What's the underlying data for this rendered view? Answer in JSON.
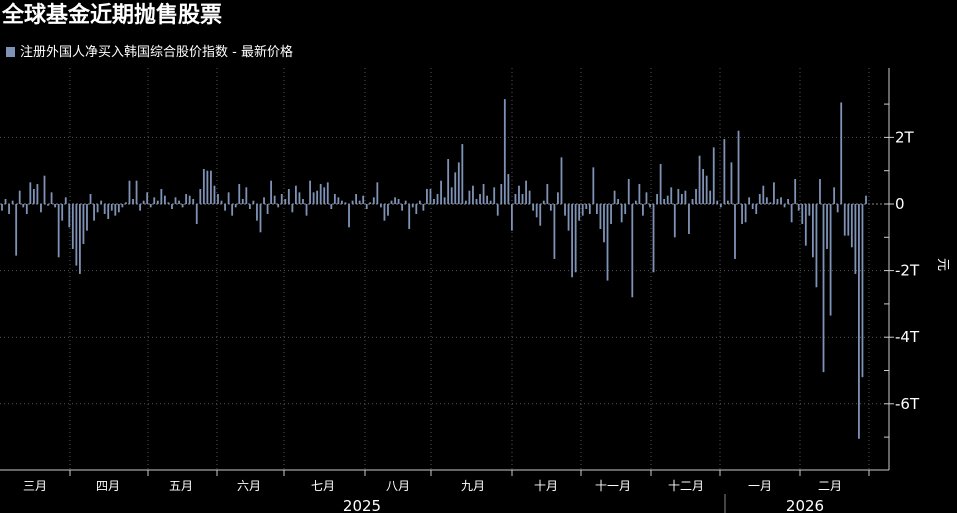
{
  "title": "全球基金近期抛售股票",
  "legend": {
    "label": "注册外国人净买入韩国综合股价指数 - 最新价格",
    "color": "#7f93b6"
  },
  "chart_data": {
    "type": "bar",
    "title": "全球基金近期抛售股票",
    "ylabel": "元",
    "ylim": [
      -8.1,
      4.1
    ],
    "grid": true,
    "bar_color": "#7f93b6",
    "y_ticks": [
      {
        "value": 2,
        "label": "2T"
      },
      {
        "value": 0,
        "label": "0"
      },
      {
        "value": -2,
        "label": "-2T"
      },
      {
        "value": -4,
        "label": "-4T"
      },
      {
        "value": -6,
        "label": "-6T"
      }
    ],
    "month_labels": [
      "三月",
      "四月",
      "五月",
      "六月",
      "七月",
      "八月",
      "九月",
      "十月",
      "十一月",
      "十二月",
      "一月",
      "二月"
    ],
    "year_labels": [
      "2025",
      "2026"
    ],
    "values": [
      -0.2,
      0.15,
      -0.3,
      0.1,
      -1.55,
      0.4,
      -0.1,
      -0.3,
      0.65,
      0.45,
      0.6,
      -0.25,
      0.85,
      -0.05,
      0.35,
      -0.1,
      -1.6,
      -0.5,
      0.2,
      -0.7,
      -1.35,
      -1.85,
      -2.1,
      -1.2,
      -0.8,
      0.3,
      -0.5,
      -0.25,
      0.1,
      -0.3,
      -0.45,
      -0.2,
      -0.35,
      -0.25,
      -0.1,
      0.05,
      0.7,
      0.15,
      0.7,
      -0.2,
      0.1,
      0.35,
      -0.1,
      0.2,
      0.1,
      0.45,
      0.25,
      0.05,
      -0.15,
      0.2,
      0.1,
      -0.1,
      0.3,
      0.25,
      0.15,
      -0.6,
      0.45,
      1.05,
      1.0,
      1.0,
      0.55,
      0.3,
      0.1,
      -0.2,
      0.35,
      -0.35,
      -0.1,
      0.6,
      0.15,
      0.5,
      -0.15,
      0.1,
      -0.5,
      -0.85,
      0.2,
      -0.3,
      0.7,
      0.25,
      -0.1,
      0.3,
      0.15,
      0.45,
      -0.25,
      0.55,
      0.35,
      0.15,
      -0.35,
      0.7,
      0.35,
      0.4,
      0.6,
      0.5,
      0.65,
      -0.15,
      0.3,
      0.2,
      0.1,
      0.05,
      -0.7,
      0.1,
      0.3,
      0.1,
      0.25,
      -0.15,
      0.05,
      0.2,
      0.65,
      -0.1,
      -0.5,
      -0.35,
      0.1,
      0.2,
      0.15,
      -0.2,
      0.1,
      -0.75,
      -0.1,
      -0.3,
      0.1,
      -0.2,
      0.45,
      0.45,
      0.15,
      0.3,
      0.7,
      0.2,
      1.35,
      0.5,
      0.95,
      1.25,
      1.8,
      0.1,
      0.4,
      0.55,
      0.15,
      0.3,
      0.6,
      0.25,
      0.1,
      0.5,
      -0.35,
      0.6,
      3.15,
      0.9,
      -0.8,
      0.3,
      0.55,
      0.3,
      0.7,
      0.4,
      -0.2,
      -0.4,
      -0.65,
      0.1,
      0.6,
      -0.2,
      -1.65,
      0.35,
      1.4,
      -0.35,
      -0.8,
      -2.2,
      -2.05,
      -0.5,
      -0.35,
      -0.15,
      -0.3,
      1.1,
      -0.3,
      -0.75,
      -1.15,
      -2.3,
      -0.6,
      0.4,
      0.15,
      -0.55,
      -0.3,
      0.75,
      -2.8,
      0.1,
      0.6,
      -0.35,
      0.35,
      -0.1,
      -2.05,
      0.3,
      1.2,
      0.15,
      0.25,
      0.5,
      -1.0,
      0.45,
      0.3,
      0.4,
      -0.9,
      0.15,
      0.45,
      1.45,
      1.05,
      0.85,
      0.4,
      1.7,
      0.1,
      -0.1,
      1.95,
      0.1,
      1.25,
      -1.65,
      2.2,
      -0.6,
      -0.55,
      0.2,
      -0.15,
      -0.3,
      0.3,
      0.55,
      0.2,
      0.05,
      0.65,
      0.15,
      0.2,
      -0.1,
      0.15,
      -0.55,
      0.75,
      -0.2,
      -0.6,
      -1.25,
      -0.35,
      -1.6,
      -2.5,
      0.75,
      -5.05,
      -1.35,
      -3.35,
      0.5,
      -0.25,
      3.05,
      -0.95,
      -0.95,
      -1.3,
      -2.1,
      -7.05,
      -5.2,
      0.25
    ]
  }
}
